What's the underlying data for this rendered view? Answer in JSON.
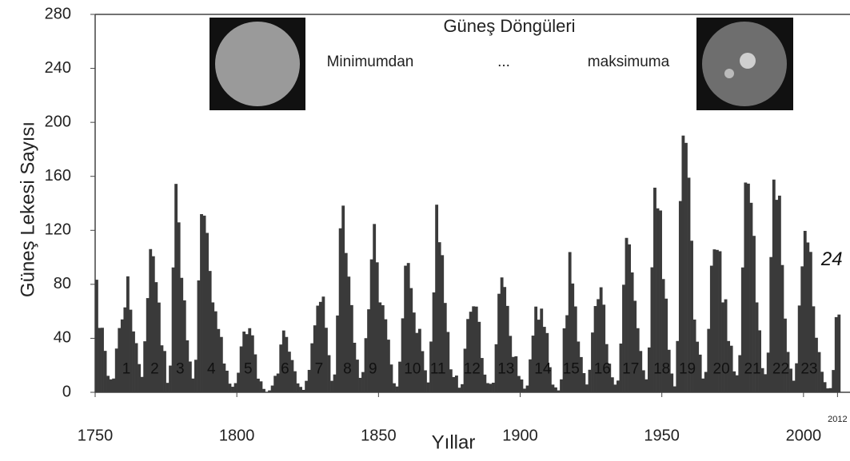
{
  "chart_data": {
    "type": "bar",
    "title": "Güneş Döngüleri",
    "annotations": [
      "Minimumdan",
      "...",
      "maksimuma"
    ],
    "xlabel": "Yıllar",
    "ylabel": "Güneş Lekesi Sayısı",
    "color": "#3a3a3a",
    "x": [
      1750,
      1751,
      1752,
      1753,
      1754,
      1755,
      1756,
      1757,
      1758,
      1759,
      1760,
      1761,
      1762,
      1763,
      1764,
      1765,
      1766,
      1767,
      1768,
      1769,
      1770,
      1771,
      1772,
      1773,
      1774,
      1775,
      1776,
      1777,
      1778,
      1779,
      1780,
      1781,
      1782,
      1783,
      1784,
      1785,
      1786,
      1787,
      1788,
      1789,
      1790,
      1791,
      1792,
      1793,
      1794,
      1795,
      1796,
      1797,
      1798,
      1799,
      1800,
      1801,
      1802,
      1803,
      1804,
      1805,
      1806,
      1807,
      1808,
      1809,
      1810,
      1811,
      1812,
      1813,
      1814,
      1815,
      1816,
      1817,
      1818,
      1819,
      1820,
      1821,
      1822,
      1823,
      1824,
      1825,
      1826,
      1827,
      1828,
      1829,
      1830,
      1831,
      1832,
      1833,
      1834,
      1835,
      1836,
      1837,
      1838,
      1839,
      1840,
      1841,
      1842,
      1843,
      1844,
      1845,
      1846,
      1847,
      1848,
      1849,
      1850,
      1851,
      1852,
      1853,
      1854,
      1855,
      1856,
      1857,
      1858,
      1859,
      1860,
      1861,
      1862,
      1863,
      1864,
      1865,
      1866,
      1867,
      1868,
      1869,
      1870,
      1871,
      1872,
      1873,
      1874,
      1875,
      1876,
      1877,
      1878,
      1879,
      1880,
      1881,
      1882,
      1883,
      1884,
      1885,
      1886,
      1887,
      1888,
      1889,
      1890,
      1891,
      1892,
      1893,
      1894,
      1895,
      1896,
      1897,
      1898,
      1899,
      1900,
      1901,
      1902,
      1903,
      1904,
      1905,
      1906,
      1907,
      1908,
      1909,
      1910,
      1911,
      1912,
      1913,
      1914,
      1915,
      1916,
      1917,
      1918,
      1919,
      1920,
      1921,
      1922,
      1923,
      1924,
      1925,
      1926,
      1927,
      1928,
      1929,
      1930,
      1931,
      1932,
      1933,
      1934,
      1935,
      1936,
      1937,
      1938,
      1939,
      1940,
      1941,
      1942,
      1943,
      1944,
      1945,
      1946,
      1947,
      1948,
      1949,
      1950,
      1951,
      1952,
      1953,
      1954,
      1955,
      1956,
      1957,
      1958,
      1959,
      1960,
      1961,
      1962,
      1963,
      1964,
      1965,
      1966,
      1967,
      1968,
      1969,
      1970,
      1971,
      1972,
      1973,
      1974,
      1975,
      1976,
      1977,
      1978,
      1979,
      1980,
      1981,
      1982,
      1983,
      1984,
      1985,
      1986,
      1987,
      1988,
      1989,
      1990,
      1991,
      1992,
      1993,
      1994,
      1995,
      1996,
      1997,
      1998,
      1999,
      2000,
      2001,
      2002,
      2003,
      2004,
      2005,
      2006,
      2007,
      2008,
      2009,
      2010,
      2011,
      2012
    ],
    "values": [
      83.4,
      47.7,
      47.8,
      30.7,
      12.2,
      9.6,
      10.2,
      32.4,
      47.6,
      54.0,
      62.9,
      85.9,
      61.2,
      45.1,
      36.4,
      20.9,
      11.4,
      37.8,
      69.8,
      106.1,
      100.8,
      81.6,
      66.5,
      34.8,
      30.6,
      7.0,
      19.8,
      92.5,
      154.4,
      125.9,
      84.8,
      68.1,
      38.5,
      22.8,
      10.2,
      24.1,
      82.9,
      132.0,
      130.9,
      118.1,
      89.9,
      66.6,
      60.0,
      46.9,
      41.0,
      21.3,
      16.0,
      6.4,
      4.1,
      6.8,
      14.5,
      34.0,
      45.0,
      43.1,
      47.5,
      42.2,
      28.1,
      10.1,
      8.1,
      2.5,
      0.0,
      1.4,
      5.0,
      12.2,
      13.9,
      35.4,
      45.8,
      41.0,
      30.1,
      23.9,
      15.6,
      6.6,
      4.0,
      1.8,
      8.5,
      16.6,
      36.3,
      49.6,
      64.2,
      67.0,
      70.9,
      47.8,
      27.5,
      8.5,
      13.2,
      56.9,
      121.5,
      138.3,
      103.2,
      85.7,
      64.6,
      36.7,
      24.2,
      10.7,
      15.0,
      40.1,
      61.5,
      98.5,
      124.7,
      96.3,
      66.6,
      64.5,
      54.1,
      39.0,
      20.6,
      6.7,
      4.3,
      22.7,
      54.8,
      93.8,
      95.8,
      77.2,
      59.1,
      44.0,
      47.0,
      30.5,
      16.3,
      7.3,
      37.6,
      74.0,
      139.0,
      111.2,
      101.6,
      66.2,
      44.7,
      17.0,
      11.3,
      12.4,
      3.4,
      6.0,
      32.3,
      54.3,
      59.7,
      63.7,
      63.5,
      52.2,
      25.4,
      13.1,
      6.8,
      6.3,
      7.1,
      35.6,
      73.0,
      85.1,
      78.0,
      64.0,
      41.8,
      26.2,
      26.7,
      12.1,
      9.5,
      2.7,
      5.0,
      24.4,
      42.0,
      63.5,
      53.8,
      62.0,
      48.5,
      43.9,
      18.6,
      5.7,
      3.6,
      1.4,
      9.6,
      47.4,
      57.1,
      103.9,
      80.6,
      63.6,
      37.6,
      26.1,
      14.2,
      5.8,
      16.7,
      44.3,
      63.9,
      69.0,
      77.8,
      64.9,
      35.7,
      21.2,
      11.1,
      5.7,
      8.7,
      36.1,
      79.7,
      114.4,
      109.6,
      88.8,
      67.8,
      47.5,
      30.6,
      16.3,
      9.6,
      33.2,
      92.6,
      151.6,
      136.3,
      134.7,
      83.9,
      69.4,
      31.5,
      13.9,
      4.4,
      38.0,
      141.7,
      190.2,
      184.8,
      159.0,
      112.3,
      53.9,
      37.5,
      27.9,
      10.2,
      15.1,
      47.0,
      93.8,
      105.9,
      105.5,
      104.5,
      66.6,
      68.9,
      38.0,
      34.5,
      15.5,
      12.6,
      27.5,
      92.5,
      155.4,
      154.6,
      140.4,
      115.9,
      66.6,
      45.9,
      17.9,
      13.4,
      29.4,
      100.2,
      157.6,
      142.6,
      145.7,
      94.3,
      54.6,
      29.9,
      17.5,
      8.6,
      21.5,
      64.3,
      93.3,
      119.6,
      111.0,
      104.0,
      63.7,
      40.4,
      29.8,
      15.2,
      7.5,
      2.9,
      3.1,
      16.5,
      55.7,
      57.6
    ],
    "cycle_labels": [
      {
        "text": "1",
        "x": 1761,
        "y": 17
      },
      {
        "text": "2",
        "x": 1771,
        "y": 17
      },
      {
        "text": "3",
        "x": 1780,
        "y": 17
      },
      {
        "text": "4",
        "x": 1791,
        "y": 17
      },
      {
        "text": "5",
        "x": 1804,
        "y": 17
      },
      {
        "text": "6",
        "x": 1817,
        "y": 17
      },
      {
        "text": "7",
        "x": 1829,
        "y": 17
      },
      {
        "text": "8",
        "x": 1839,
        "y": 17
      },
      {
        "text": "9",
        "x": 1848,
        "y": 17
      },
      {
        "text": "10",
        "x": 1862,
        "y": 17
      },
      {
        "text": "11",
        "x": 1871,
        "y": 17
      },
      {
        "text": "12",
        "x": 1883,
        "y": 17
      },
      {
        "text": "13",
        "x": 1895,
        "y": 17
      },
      {
        "text": "14",
        "x": 1908,
        "y": 17
      },
      {
        "text": "15",
        "x": 1918,
        "y": 17
      },
      {
        "text": "16",
        "x": 1929,
        "y": 17
      },
      {
        "text": "17",
        "x": 1939,
        "y": 17
      },
      {
        "text": "18",
        "x": 1950,
        "y": 17
      },
      {
        "text": "19",
        "x": 1959,
        "y": 17
      },
      {
        "text": "20",
        "x": 1971,
        "y": 17
      },
      {
        "text": "21",
        "x": 1982,
        "y": 17
      },
      {
        "text": "22",
        "x": 1992,
        "y": 17
      },
      {
        "text": "23",
        "x": 2002,
        "y": 17
      },
      {
        "text": "24",
        "x": 2010,
        "y": 98
      }
    ],
    "xlim": [
      1750,
      2015
    ],
    "ylim": [
      0,
      280
    ],
    "xticks": [
      1750,
      1800,
      1850,
      1900,
      1950,
      2000,
      2012
    ],
    "yticks": [
      0,
      40,
      80,
      120,
      160,
      200,
      240,
      280
    ]
  }
}
